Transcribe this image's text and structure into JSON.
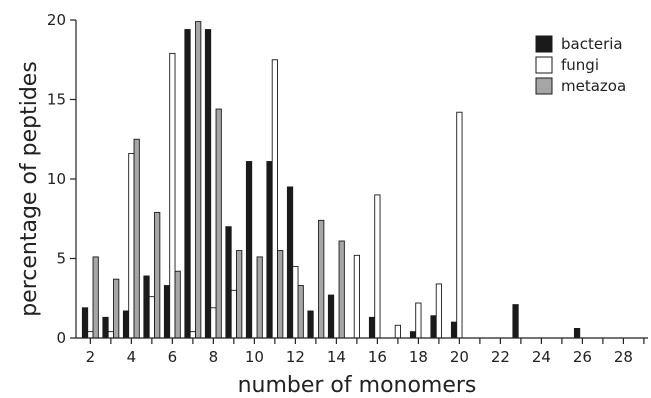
{
  "chart_data": {
    "type": "bar",
    "xlabel": "number of monomers",
    "ylabel": "percentage of peptides",
    "xlim": [
      1.3,
      29.2
    ],
    "ylim": [
      0,
      20
    ],
    "yticks": [
      0,
      5,
      10,
      15,
      20
    ],
    "xtick_labels": [
      2,
      4,
      6,
      8,
      10,
      12,
      14,
      16,
      18,
      20,
      22,
      24,
      26,
      28
    ],
    "minor_xticks": [
      2,
      3,
      4,
      5,
      6,
      7,
      8,
      9,
      10,
      11,
      12,
      13,
      14,
      15,
      16,
      17,
      18,
      19,
      20,
      21,
      22,
      23,
      24,
      25,
      26,
      27,
      28,
      29
    ],
    "grid": false,
    "legend_position": "top-right",
    "x": [
      2,
      3,
      4,
      5,
      6,
      7,
      8,
      9,
      10,
      11,
      12,
      13,
      14,
      15,
      16,
      17,
      18,
      19,
      20,
      21,
      22,
      23,
      24,
      25,
      26,
      27,
      28
    ],
    "series": [
      {
        "name": "bacteria",
        "color": "#1a1a1a",
        "values": [
          1.9,
          1.3,
          1.7,
          3.9,
          3.3,
          19.4,
          19.4,
          7.0,
          11.1,
          11.1,
          9.5,
          1.7,
          2.7,
          0,
          1.3,
          0,
          0.4,
          1.4,
          1.0,
          0,
          0,
          2.1,
          0,
          0,
          0.6,
          0,
          0
        ]
      },
      {
        "name": "fungi",
        "color": "#ffffff",
        "values": [
          0.4,
          0.4,
          11.6,
          2.6,
          17.9,
          0.4,
          1.9,
          3.0,
          0,
          17.5,
          4.5,
          0,
          0,
          5.2,
          9.0,
          0.8,
          2.2,
          3.4,
          14.2,
          0,
          0,
          0,
          0,
          0,
          0,
          0,
          0
        ]
      },
      {
        "name": "metazoa",
        "color": "#a6a6a6",
        "values": [
          5.1,
          3.7,
          12.5,
          7.9,
          4.2,
          19.9,
          14.4,
          5.5,
          5.1,
          5.5,
          3.3,
          7.4,
          6.1,
          0,
          0,
          0,
          0,
          0,
          0,
          0,
          0,
          0,
          0,
          0,
          0,
          0,
          0
        ]
      }
    ]
  }
}
